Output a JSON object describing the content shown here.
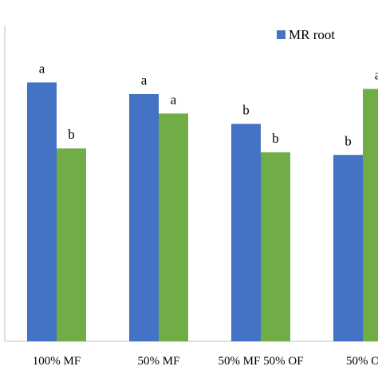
{
  "chart_data": {
    "type": "bar",
    "categories": [
      "100% MF",
      "50% MF",
      "50% MF 50% OF",
      "50% O"
    ],
    "series": [
      {
        "name": "MR root",
        "color": "#4472C4",
        "values": [
          100,
          95.5,
          84,
          72
        ],
        "labels": [
          "a",
          "a",
          "b",
          "b"
        ]
      },
      {
        "name": "",
        "color": "#70AD47",
        "values": [
          74.5,
          88,
          73,
          97.5
        ],
        "labels": [
          "b",
          "a",
          "b",
          "a"
        ]
      }
    ],
    "ylim": [
      0,
      122
    ],
    "grid": false,
    "legend_position": "top-right",
    "title": "",
    "xlabel": "",
    "ylabel": ""
  }
}
